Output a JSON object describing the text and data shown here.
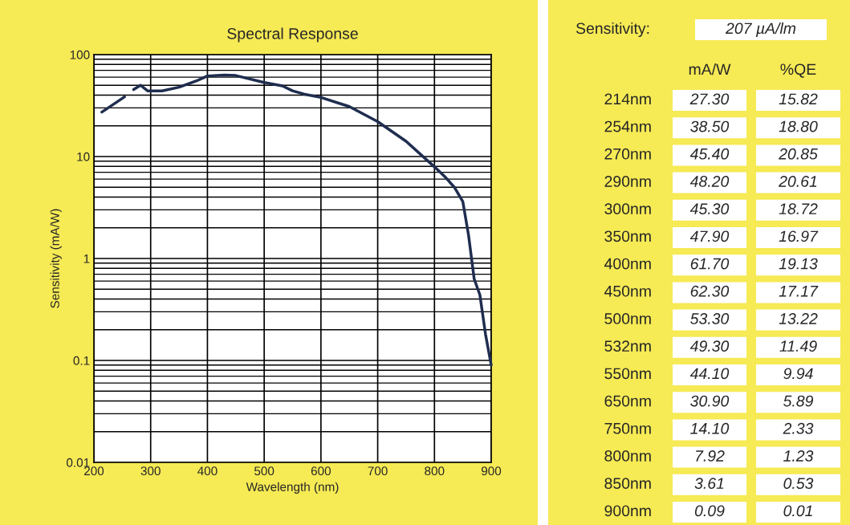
{
  "chart_data": [
    {
      "type": "line",
      "title": "Spectral Response",
      "xlabel": "Wavelength (nm)",
      "ylabel": "Sensitivity (mA/W)",
      "x": [
        214,
        254,
        262,
        270,
        282,
        295,
        320,
        350,
        380,
        400,
        430,
        450,
        500,
        532,
        550,
        570,
        600,
        650,
        700,
        750,
        800,
        820,
        835,
        850,
        860,
        870,
        880,
        890,
        900
      ],
      "series": [
        {
          "color": "#1f2d4f",
          "values": [
            27.3,
            38.5,
            null,
            45.4,
            50,
            44,
            44,
            47.9,
            55,
            61.7,
            63,
            62.3,
            53.3,
            49.3,
            44.1,
            41,
            38,
            30.9,
            22,
            14.1,
            7.92,
            6.2,
            5,
            3.61,
            1.7,
            0.63,
            0.44,
            0.18,
            0.09
          ]
        }
      ],
      "xlim": [
        200,
        900
      ],
      "ylim": [
        0.01,
        100
      ],
      "xticks": [
        200,
        300,
        400,
        500,
        600,
        700,
        800,
        900
      ],
      "yticks": [
        0.01,
        0.1,
        1,
        10,
        100
      ],
      "log": "y",
      "grid": true,
      "line_style": "solid"
    },
    {
      "type": "other",
      "annotations": [
        "Sensitivity:",
        "207 µA/lm"
      ],
      "categories": [
        "214nm",
        "254nm",
        "270nm",
        "290nm",
        "300nm",
        "350nm",
        "400nm",
        "450nm",
        "500nm",
        "532nm",
        "550nm",
        "650nm",
        "750nm",
        "800nm",
        "850nm",
        "900nm"
      ],
      "series": [
        {
          "name": "mA/W",
          "values": [
            27.3,
            38.5,
            45.4,
            48.2,
            45.3,
            47.9,
            61.7,
            62.3,
            53.3,
            49.3,
            44.1,
            30.9,
            14.1,
            7.92,
            3.61,
            0.09
          ],
          "value_labels": [
            "27.30",
            "38.50",
            "45.40",
            "48.20",
            "45.30",
            "47.90",
            "61.70",
            "62.30",
            "53.30",
            "49.30",
            "44.10",
            "30.90",
            "14.10",
            "7.92",
            "3.61",
            "0.09"
          ]
        },
        {
          "name": "%QE",
          "values": [
            15.82,
            18.8,
            20.85,
            20.61,
            18.72,
            16.97,
            19.13,
            17.17,
            13.22,
            11.49,
            9.94,
            5.89,
            2.33,
            1.23,
            0.53,
            0.01
          ],
          "value_labels": [
            "15.82",
            "18.80",
            "20.85",
            "20.61",
            "18.72",
            "16.97",
            "19.13",
            "17.17",
            "13.22",
            "11.49",
            "9.94",
            "5.89",
            "2.33",
            "1.23",
            "0.53",
            "0.01"
          ]
        }
      ]
    }
  ]
}
